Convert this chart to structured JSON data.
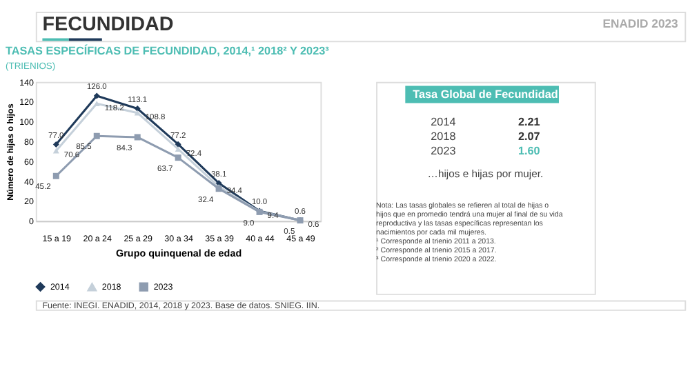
{
  "chart_data": [
    {
      "type": "line",
      "title": "TASAS ESPECÍFICAS DE FECUNDIDAD,  2014,¹ 2018² Y 2023³",
      "subtitle": "(TRIENIOS)",
      "xlabel": "Grupo quinquenal de edad",
      "ylabel": "Número de hijas o hijos",
      "categories": [
        "15 a 19",
        "20 a 24",
        "25 a 29",
        "30 a 34",
        "35 a 39",
        "40 a 44",
        "45 a 49"
      ],
      "series": [
        {
          "name": "2014",
          "color": "#1f3a5a",
          "marker": "diamond",
          "values": [
            77.0,
            126.0,
            113.1,
            77.2,
            38.1,
            10.0,
            0.6
          ],
          "value_labels": [
            "77.0",
            "126.0",
            "113.1",
            "77.2",
            "38.1",
            "10.0",
            "0.6"
          ]
        },
        {
          "name": "2018",
          "color": "#c5d0da",
          "marker": "triangle",
          "values": [
            70.6,
            118.2,
            108.8,
            72.4,
            34.4,
            9.4,
            0.6
          ],
          "value_labels": [
            "70.6",
            "118.2",
            "108.8",
            "72.4",
            "34.4",
            "9.4",
            "0.6"
          ]
        },
        {
          "name": "2023",
          "color": "#8e9cb0",
          "marker": "square",
          "values": [
            45.2,
            85.5,
            84.3,
            63.7,
            32.4,
            9.0,
            0.5
          ],
          "value_labels": [
            "45.2",
            "85.5",
            "84.3",
            "63.7",
            "32.4",
            "9.0",
            "0.5"
          ]
        }
      ],
      "ylim": [
        0,
        140
      ],
      "yticks": [
        0,
        20,
        40,
        60,
        80,
        100,
        120,
        140
      ],
      "grid": false,
      "legend": "bottom",
      "line_style": "solid",
      "annotations": [
        "FECUNDIDAD",
        "ENADID 2023",
        "Fuente: INEGI. ENADID, 2014, 2018 y 2023. Base de datos. SNIEG. IIN."
      ]
    },
    {
      "type": "other",
      "title": "Tasa Global de Fecundidad",
      "categories": [
        "2014",
        "2018",
        "2023"
      ],
      "values": [
        2.21,
        2.07,
        1.6
      ],
      "value_labels": [
        "2.21",
        "2.07",
        "1.60"
      ],
      "colors": [
        "#333333",
        "#333333",
        "#4dbdb3"
      ],
      "annotations": [
        "…hijos e hijas por mujer.",
        "Nota: Las tasas globales se refieren al total de hijas o hijos que en promedio tendrá una mujer al final de su vida reproductiva y las tasas específicas representan los nacimientos por cada mil mujeres.",
        "¹ Corresponde al trienio 2011 a 2013.",
        "² Corresponde al trienio 2015 a 2017.",
        "³ Corresponde al trienio 2020 a 2022."
      ]
    }
  ]
}
